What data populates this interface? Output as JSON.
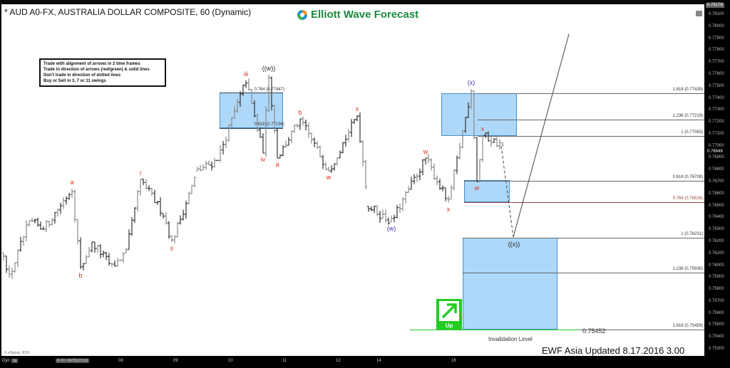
{
  "header": {
    "title": "* AUD A0-FX, AUSTRALIA DOLLAR COMPOSITE, 60 (Dynamic)",
    "logo_text": "Elliott Wave Forecast"
  },
  "rules": [
    "Trade with alignment of arrows in 2 time frames",
    "Trade in direction of arrows (red/green) & solid lines",
    "Don't trade in direction of dotted lines",
    "Buy or Sell in 3, 7 or 11 swings"
  ],
  "colors": {
    "wave_red": "#e0301e",
    "wave_blue": "#3a3aa8",
    "box_fill": "#8cc8f5",
    "up_green": "#22cc22",
    "invalidation_green": "#22cc22"
  },
  "chart_data": {
    "type": "ohlc-bar",
    "ylim": [
      0.753,
      0.7818
    ],
    "y_ticks": [
      "0.78100",
      "0.78000",
      "0.77900",
      "0.77800",
      "0.77700",
      "0.77600",
      "0.77500",
      "0.77400",
      "0.77300",
      "0.77200",
      "0.77100",
      "0.77000",
      "0.76900",
      "0.76800",
      "0.76700",
      "0.76600",
      "0.76500",
      "0.76400",
      "0.76300",
      "0.76200",
      "0.76100",
      "0.76000",
      "0.75900",
      "0.75800",
      "0.75700",
      "0.75600",
      "0.75500",
      "0.75400",
      "0.75300"
    ],
    "last_high_label": "0.78178",
    "current_price_label": "0.76949",
    "x_ticks": [
      "6:00 08/05/2016",
      "08",
      "09",
      "10",
      "11",
      "12",
      "14",
      "16"
    ],
    "pivots": [
      {
        "bar": 0,
        "price": 0.76104,
        "label": ""
      },
      {
        "bar": 2,
        "price": 0.75896,
        "label": ""
      },
      {
        "bar": 9,
        "price": 0.76372,
        "label": ""
      },
      {
        "bar": 14,
        "price": 0.763,
        "label": ""
      },
      {
        "bar": 24,
        "price": 0.7664,
        "label": "a",
        "color": "red"
      },
      {
        "bar": 27,
        "price": 0.75967,
        "label": "b",
        "color": "red"
      },
      {
        "bar": 31,
        "price": 0.76194,
        "label": ""
      },
      {
        "bar": 38,
        "price": 0.75985,
        "label": ""
      },
      {
        "bar": 43,
        "price": 0.76104,
        "label": ""
      },
      {
        "bar": 48,
        "price": 0.76718,
        "label": "i",
        "color": "red"
      },
      {
        "bar": 56,
        "price": 0.76432,
        "label": ""
      },
      {
        "bar": 59,
        "price": 0.76194,
        "label": "ii",
        "color": "red"
      },
      {
        "bar": 68,
        "price": 0.76789,
        "label": ""
      },
      {
        "bar": 75,
        "price": 0.76879,
        "label": ""
      },
      {
        "bar": 85,
        "price": 0.77546,
        "label": "iii",
        "color": "red"
      },
      {
        "bar": 91,
        "price": 0.76938,
        "label": "iv",
        "color": "red"
      },
      {
        "bar": 93,
        "price": 0.77594,
        "label": "((w))",
        "color": "black"
      },
      {
        "bar": 96,
        "price": 0.76897,
        "label": "a",
        "color": "red"
      },
      {
        "bar": 104,
        "price": 0.77224,
        "label": "b",
        "color": "red"
      },
      {
        "bar": 114,
        "price": 0.76789,
        "label": "w",
        "color": "red"
      },
      {
        "bar": 124,
        "price": 0.77254,
        "label": "x",
        "color": "red"
      },
      {
        "bar": 128,
        "price": 0.76492,
        "label": ""
      },
      {
        "bar": 136,
        "price": 0.76361,
        "label": "(w)",
        "color": "blue"
      },
      {
        "bar": 148,
        "price": 0.76897,
        "label": "w",
        "color": "red"
      },
      {
        "bar": 156,
        "price": 0.76521,
        "label": "x",
        "color": "red"
      },
      {
        "bar": 164,
        "price": 0.77474,
        "label": "(x)",
        "color": "blue"
      },
      {
        "bar": 166,
        "price": 0.767,
        "label": "w",
        "color": "red"
      },
      {
        "bar": 168,
        "price": 0.77087,
        "label": "x",
        "color": "red"
      },
      {
        "bar": 175,
        "price": 0.76998,
        "label": ""
      }
    ],
    "projection": {
      "target_label": "((x))",
      "target_price": 0.76231,
      "then_up_to": 0.77933
    }
  },
  "fib_boxes": [
    {
      "top_label": "0.764 (0.77447)",
      "bottom_label": "0.618 (0.77156)"
    }
  ],
  "fib_levels": [
    {
      "label": "1.618 (0.77439)",
      "price": 0.77439
    },
    {
      "label": "1.236 (0.77219)",
      "price": 0.77219
    },
    {
      "label": "1 (0.77083)",
      "price": 0.77083
    },
    {
      "label": "0.618 (0.76708)",
      "price": 0.76708
    },
    {
      "label": "0.764 (0.76526)",
      "price": 0.76526
    },
    {
      "label": "1 (0.76231)",
      "price": 0.76231
    },
    {
      "label": "1.236 (0.75936)",
      "price": 0.75936
    },
    {
      "label": "1.618 (0.75459)",
      "price": 0.75459
    }
  ],
  "invalidation": {
    "label": "Invalidation Level",
    "value": "0.75452"
  },
  "up_signal": {
    "label": "Up"
  },
  "footer": {
    "update_text": "EWF Asia Updated 8.17.2016 3.00 GMT",
    "copyright": "© eSignal, 2016"
  },
  "bottom_bar": {
    "mode": "Dyn",
    "mode_box": "Ia"
  }
}
